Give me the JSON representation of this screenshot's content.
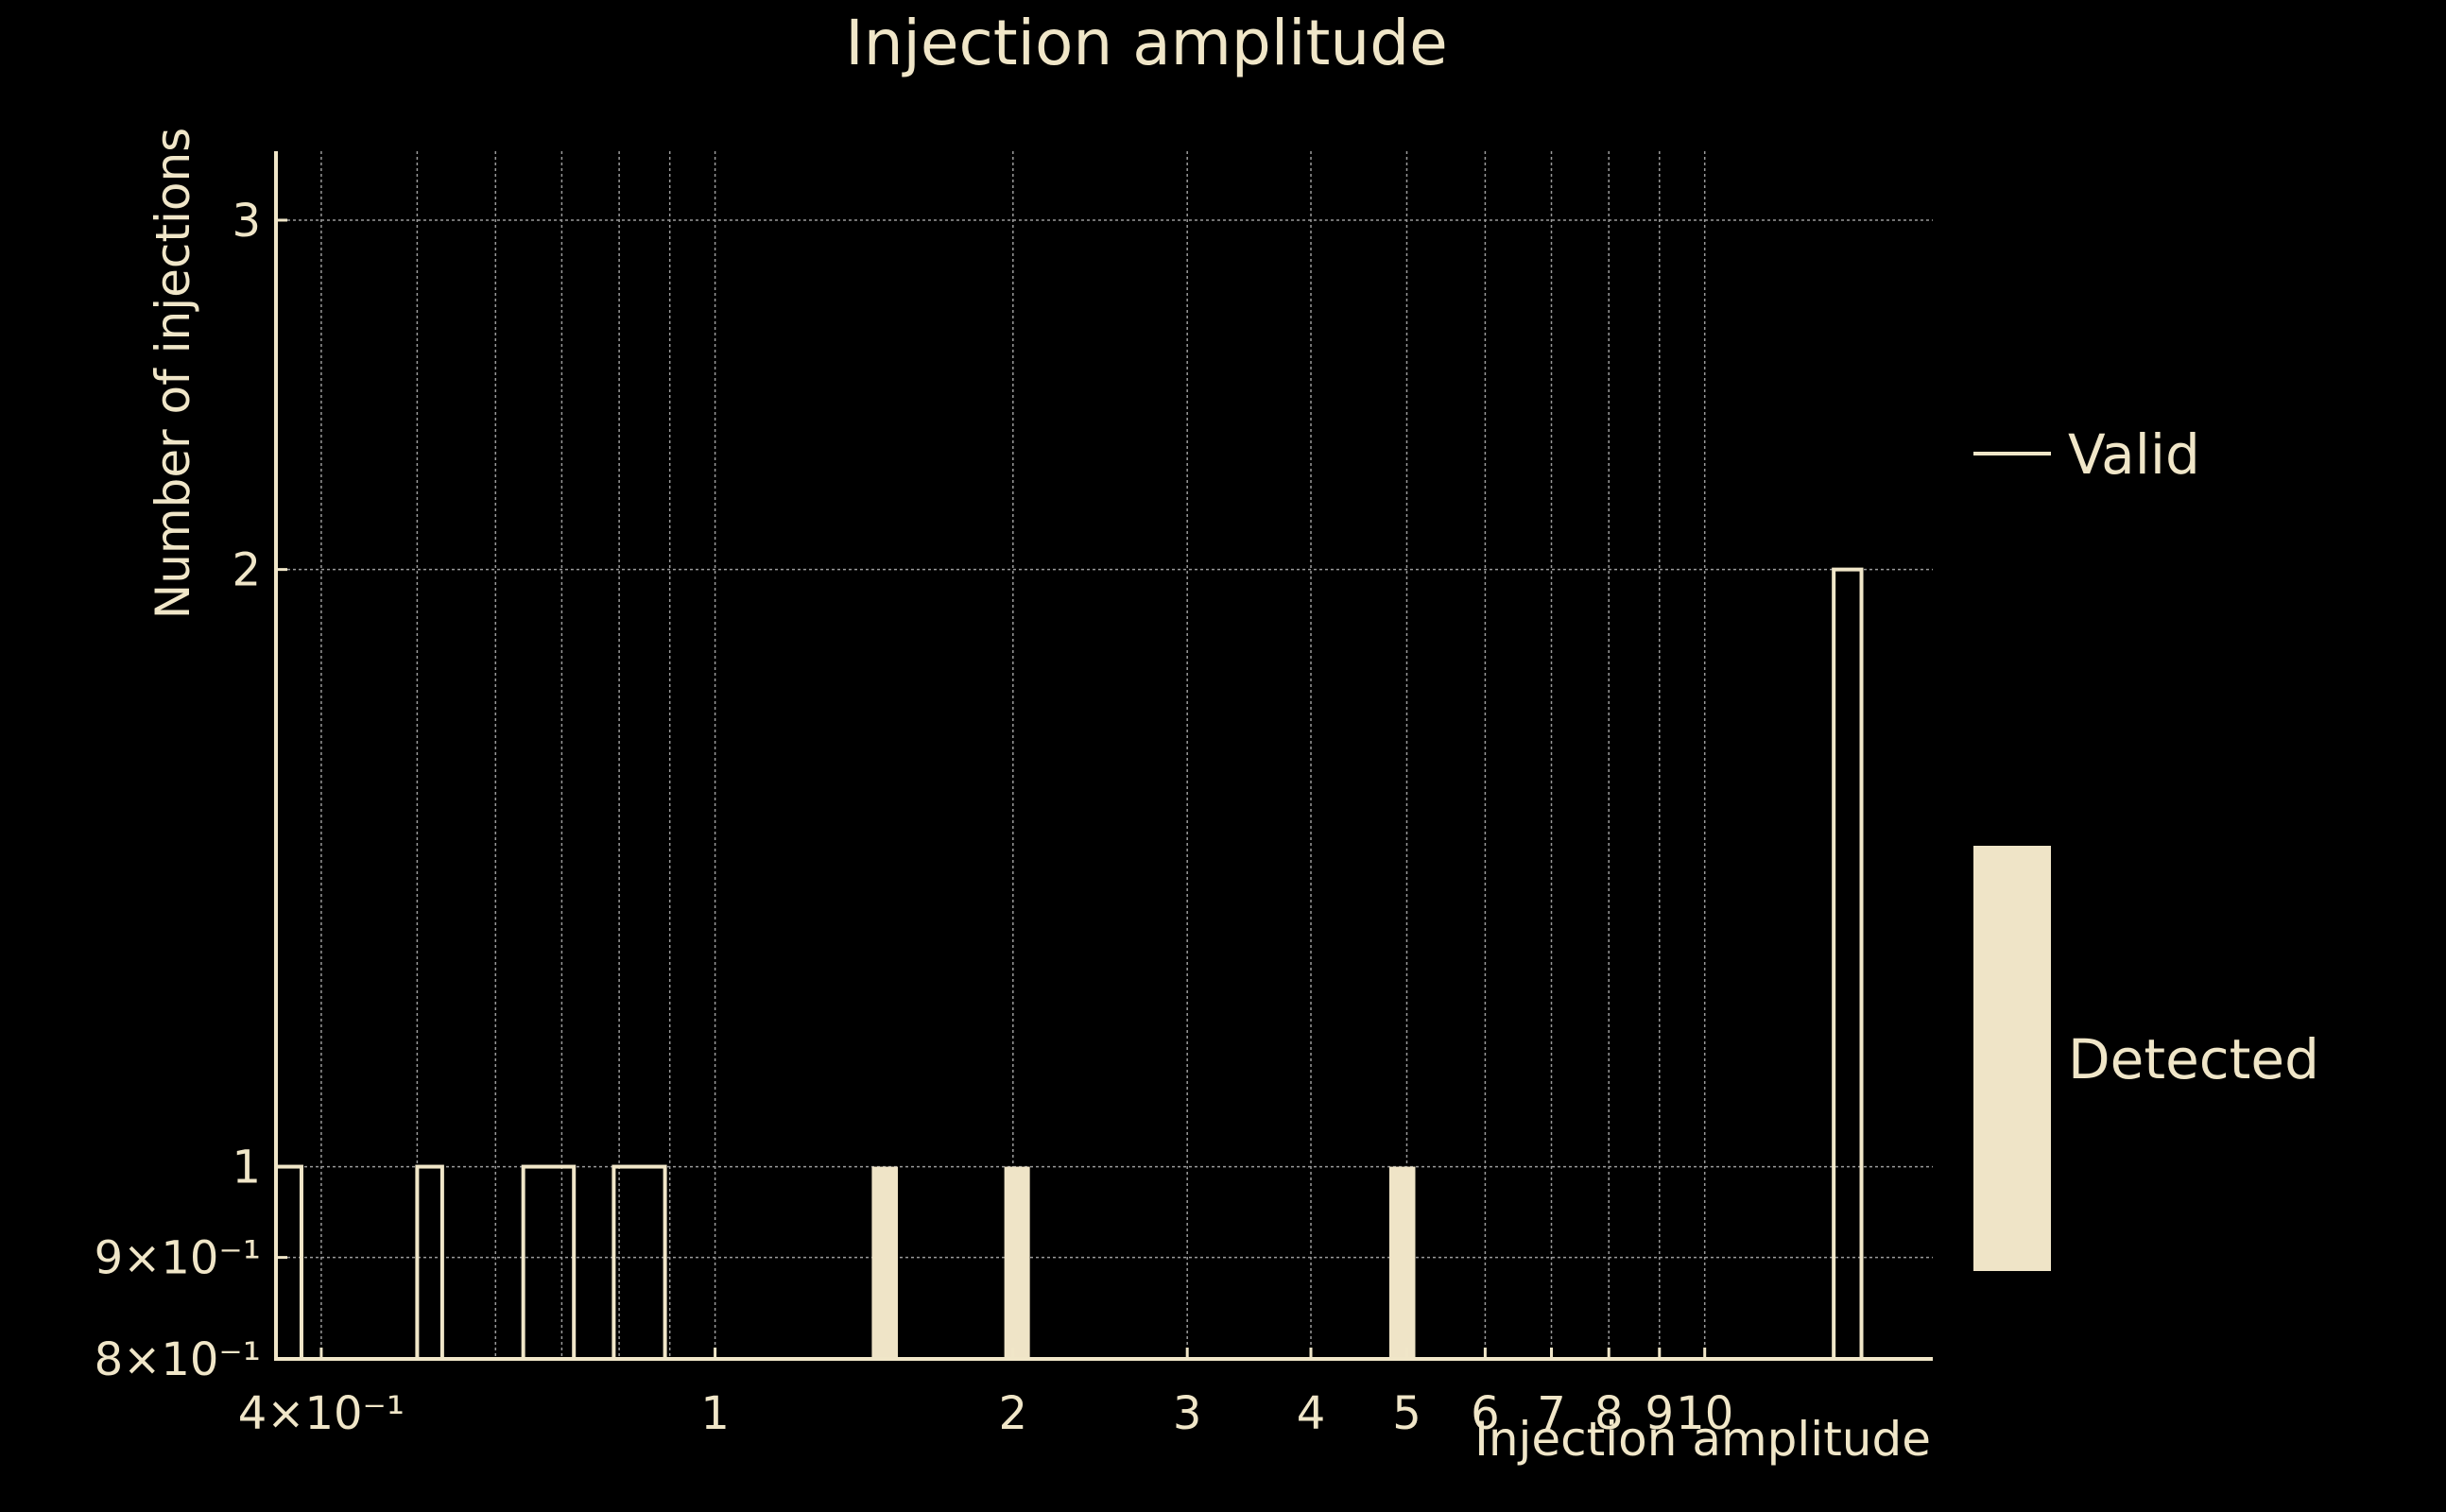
{
  "chart_data": {
    "type": "bar",
    "title": "Injection amplitude",
    "xlabel": "Injection amplitude",
    "ylabel": "Number of injections",
    "x_scale": "log",
    "y_scale": "log",
    "xlim": [
      0.36,
      17
    ],
    "ylim": [
      0.8,
      3.25
    ],
    "grid": true,
    "x_ticks": [
      {
        "value": 0.4,
        "label": "4×10⁻¹"
      },
      {
        "value": 1,
        "label": "1"
      },
      {
        "value": 2,
        "label": "2"
      },
      {
        "value": 3,
        "label": "3"
      },
      {
        "value": 4,
        "label": "4"
      },
      {
        "value": 5,
        "label": "5"
      },
      {
        "value": 6,
        "label": "6"
      },
      {
        "value": 7,
        "label": "7"
      },
      {
        "value": 8,
        "label": "8"
      },
      {
        "value": 9,
        "label": "9"
      },
      {
        "value": 10,
        "label": "10"
      }
    ],
    "x_minor_grid": [
      0.5,
      0.6,
      0.7,
      0.8,
      0.9
    ],
    "y_ticks": [
      {
        "value": 0.8,
        "label": "8×10⁻¹"
      },
      {
        "value": 0.9,
        "label": "9×10⁻¹"
      },
      {
        "value": 1,
        "label": "1"
      },
      {
        "value": 2,
        "label": "2"
      },
      {
        "value": 3,
        "label": "3"
      }
    ],
    "legend_position": "right",
    "colors": {
      "background": "#000000",
      "foreground": "#f0e6c8",
      "detected_fill": "#efe4c7"
    },
    "series": [
      {
        "name": "Valid",
        "style": "outline",
        "bars": [
          {
            "x0": 0.36,
            "x1": 0.382,
            "value": 1
          },
          {
            "x0": 0.5,
            "x1": 0.53,
            "value": 1
          },
          {
            "x0": 0.64,
            "x1": 0.72,
            "value": 1
          },
          {
            "x0": 0.79,
            "x1": 0.89,
            "value": 1
          },
          {
            "x0": 13.5,
            "x1": 14.4,
            "value": 2
          }
        ]
      },
      {
        "name": "Detected",
        "style": "filled",
        "bars": [
          {
            "x0": 1.44,
            "x1": 1.53,
            "value": 1
          },
          {
            "x0": 1.96,
            "x1": 2.08,
            "value": 1
          },
          {
            "x0": 4.8,
            "x1": 5.1,
            "value": 1
          }
        ]
      }
    ]
  }
}
